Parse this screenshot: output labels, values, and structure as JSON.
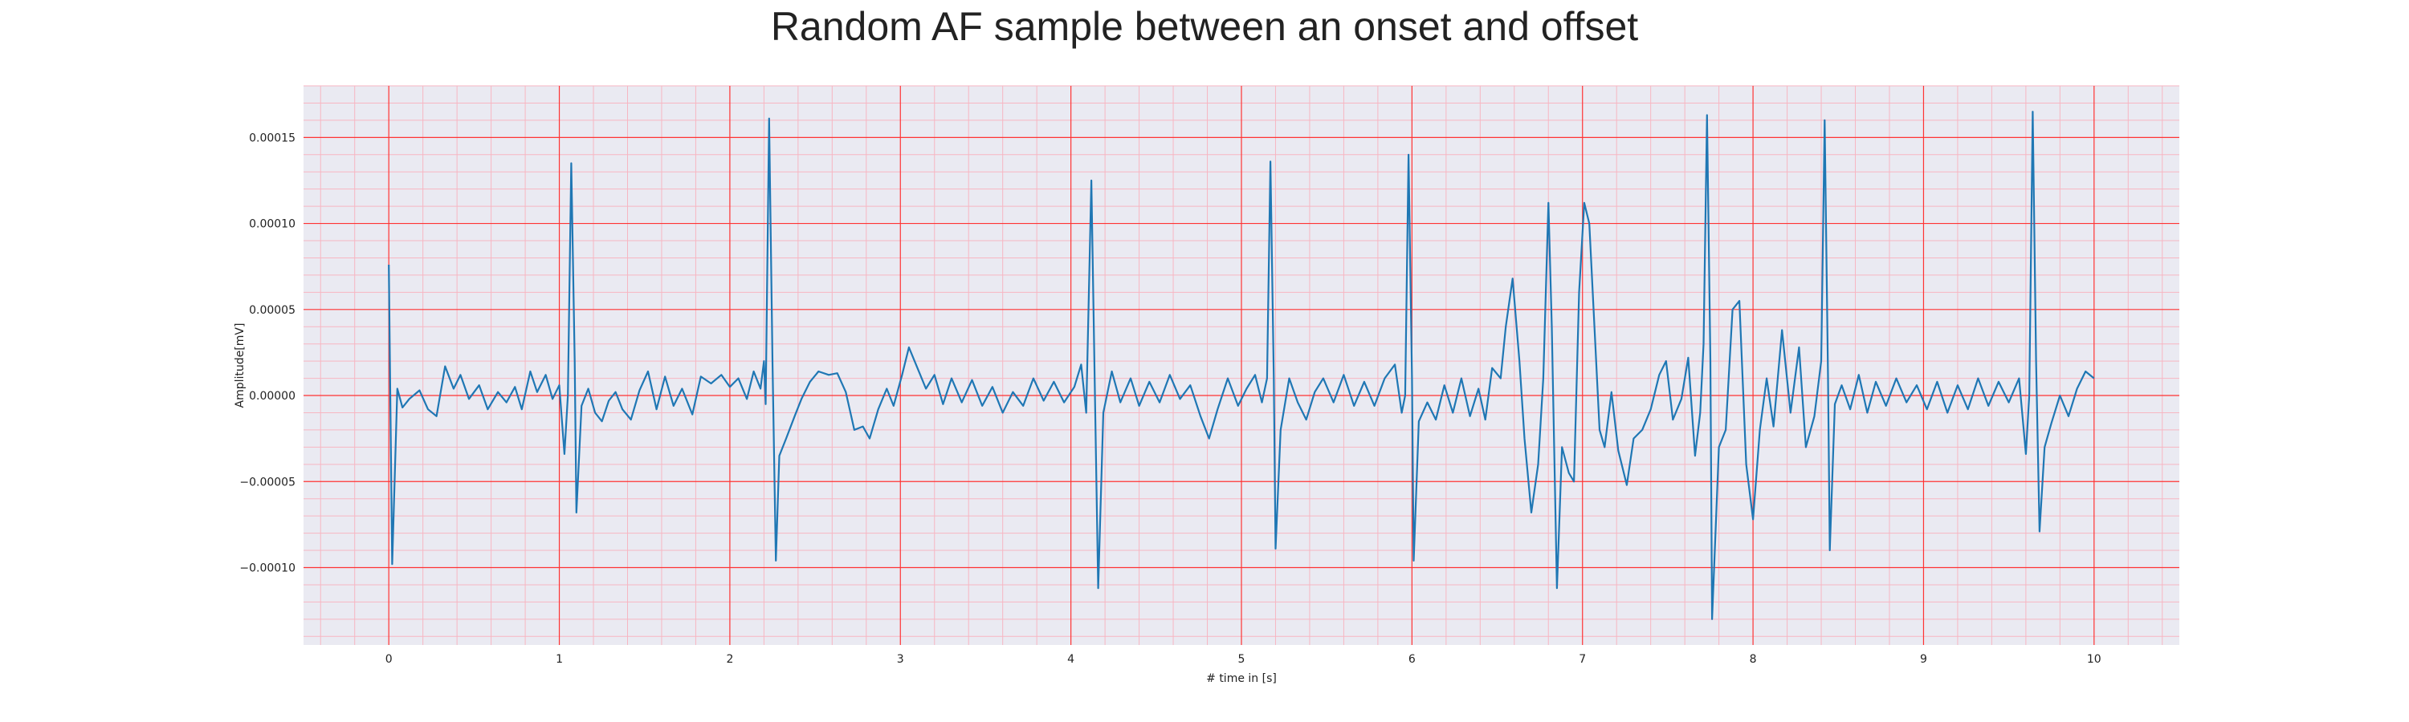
{
  "chart_data": {
    "type": "line",
    "title": "Random AF sample between an onset and offset",
    "xlabel": "# time in [s]",
    "ylabel": "Amplitude[mV]",
    "xlim": [
      -0.5,
      10.5
    ],
    "ylim": [
      -0.000145,
      0.00018
    ],
    "x_ticks": [
      0,
      1,
      2,
      3,
      4,
      5,
      6,
      7,
      8,
      9,
      10
    ],
    "x_tick_labels": [
      "0",
      "1",
      "2",
      "3",
      "4",
      "5",
      "6",
      "7",
      "8",
      "9",
      "10"
    ],
    "y_ticks": [
      -0.0001,
      -5e-05,
      0,
      5e-05,
      0.0001,
      0.00015
    ],
    "y_tick_labels": [
      "−0.00010",
      "−0.00005",
      "0.00000",
      "0.00005",
      "0.00010",
      "0.00015"
    ],
    "grid": "major and minor",
    "colors": {
      "line": "#1f77b4",
      "plot_background": "#eaeaf2",
      "major_grid": "#ff3333",
      "minor_grid": "#f7b6c2"
    },
    "series": [
      {
        "points": [
          [
            0.0,
            7.6e-05
          ],
          [
            0.02,
            -9.8e-05
          ],
          [
            0.05,
            4e-06
          ],
          [
            0.08,
            -7e-06
          ],
          [
            0.12,
            -2e-06
          ],
          [
            0.18,
            3e-06
          ],
          [
            0.23,
            -8e-06
          ],
          [
            0.28,
            -1.2e-05
          ],
          [
            0.33,
            1.7e-05
          ],
          [
            0.38,
            4e-06
          ],
          [
            0.42,
            1.2e-05
          ],
          [
            0.47,
            -2e-06
          ],
          [
            0.53,
            6e-06
          ],
          [
            0.58,
            -8e-06
          ],
          [
            0.64,
            2e-06
          ],
          [
            0.69,
            -4e-06
          ],
          [
            0.74,
            5e-06
          ],
          [
            0.78,
            -8e-06
          ],
          [
            0.83,
            1.4e-05
          ],
          [
            0.87,
            2e-06
          ],
          [
            0.92,
            1.2e-05
          ],
          [
            0.96,
            -2e-06
          ],
          [
            1.0,
            6e-06
          ],
          [
            1.03,
            -3.4e-05
          ],
          [
            1.05,
            0.0
          ],
          [
            1.07,
            0.000135
          ],
          [
            1.09,
            2e-05
          ],
          [
            1.1,
            -6.8e-05
          ],
          [
            1.13,
            -6e-06
          ],
          [
            1.17,
            4e-06
          ],
          [
            1.21,
            -1e-05
          ],
          [
            1.25,
            -1.5e-05
          ],
          [
            1.29,
            -3e-06
          ],
          [
            1.33,
            2e-06
          ],
          [
            1.37,
            -8e-06
          ],
          [
            1.42,
            -1.4e-05
          ],
          [
            1.47,
            3e-06
          ],
          [
            1.52,
            1.4e-05
          ],
          [
            1.57,
            -8e-06
          ],
          [
            1.62,
            1.1e-05
          ],
          [
            1.67,
            -6e-06
          ],
          [
            1.72,
            4e-06
          ],
          [
            1.78,
            -1.1e-05
          ],
          [
            1.83,
            1.1e-05
          ],
          [
            1.89,
            7e-06
          ],
          [
            1.95,
            1.2e-05
          ],
          [
            2.0,
            5e-06
          ],
          [
            2.05,
            1e-05
          ],
          [
            2.1,
            -2e-06
          ],
          [
            2.14,
            1.4e-05
          ],
          [
            2.18,
            4e-06
          ],
          [
            2.2,
            2e-05
          ],
          [
            2.21,
            -5e-06
          ],
          [
            2.23,
            0.000161
          ],
          [
            2.25,
            2e-05
          ],
          [
            2.27,
            -9.6e-05
          ],
          [
            2.29,
            -3.5e-05
          ],
          [
            2.33,
            -2.5e-05
          ],
          [
            2.38,
            -1.2e-05
          ],
          [
            2.42,
            -2e-06
          ],
          [
            2.47,
            8e-06
          ],
          [
            2.52,
            1.4e-05
          ],
          [
            2.58,
            1.2e-05
          ],
          [
            2.63,
            1.3e-05
          ],
          [
            2.68,
            2e-06
          ],
          [
            2.73,
            -2e-05
          ],
          [
            2.78,
            -1.8e-05
          ],
          [
            2.82,
            -2.5e-05
          ],
          [
            2.87,
            -8e-06
          ],
          [
            2.92,
            4e-06
          ],
          [
            2.96,
            -6e-06
          ],
          [
            3.01,
            1.2e-05
          ],
          [
            3.05,
            2.8e-05
          ],
          [
            3.1,
            1.6e-05
          ],
          [
            3.15,
            4e-06
          ],
          [
            3.2,
            1.2e-05
          ],
          [
            3.25,
            -5e-06
          ],
          [
            3.3,
            1e-05
          ],
          [
            3.36,
            -4e-06
          ],
          [
            3.42,
            9e-06
          ],
          [
            3.48,
            -6e-06
          ],
          [
            3.54,
            5e-06
          ],
          [
            3.6,
            -1e-05
          ],
          [
            3.66,
            2e-06
          ],
          [
            3.72,
            -6e-06
          ],
          [
            3.78,
            1e-05
          ],
          [
            3.84,
            -3e-06
          ],
          [
            3.9,
            8e-06
          ],
          [
            3.96,
            -4e-06
          ],
          [
            4.02,
            5e-06
          ],
          [
            4.06,
            1.8e-05
          ],
          [
            4.09,
            -1e-05
          ],
          [
            4.12,
            0.000125
          ],
          [
            4.14,
            5e-06
          ],
          [
            4.16,
            -0.000112
          ],
          [
            4.19,
            -1e-05
          ],
          [
            4.24,
            1.4e-05
          ],
          [
            4.29,
            -4e-06
          ],
          [
            4.35,
            1e-05
          ],
          [
            4.4,
            -6e-06
          ],
          [
            4.46,
            8e-06
          ],
          [
            4.52,
            -4e-06
          ],
          [
            4.58,
            1.2e-05
          ],
          [
            4.64,
            -2e-06
          ],
          [
            4.7,
            6e-06
          ],
          [
            4.76,
            -1.2e-05
          ],
          [
            4.81,
            -2.5e-05
          ],
          [
            4.86,
            -8e-06
          ],
          [
            4.92,
            1e-05
          ],
          [
            4.98,
            -6e-06
          ],
          [
            5.03,
            4e-06
          ],
          [
            5.08,
            1.2e-05
          ],
          [
            5.12,
            -4e-06
          ],
          [
            5.15,
            1e-05
          ],
          [
            5.17,
            0.000136
          ],
          [
            5.19,
            1e-05
          ],
          [
            5.2,
            -8.9e-05
          ],
          [
            5.23,
            -2e-05
          ],
          [
            5.28,
            1e-05
          ],
          [
            5.33,
            -4e-06
          ],
          [
            5.38,
            -1.4e-05
          ],
          [
            5.43,
            2e-06
          ],
          [
            5.48,
            1e-05
          ],
          [
            5.54,
            -4e-06
          ],
          [
            5.6,
            1.2e-05
          ],
          [
            5.66,
            -6e-06
          ],
          [
            5.72,
            8e-06
          ],
          [
            5.78,
            -6e-06
          ],
          [
            5.84,
            1e-05
          ],
          [
            5.9,
            1.8e-05
          ],
          [
            5.94,
            -1e-05
          ],
          [
            5.96,
            0.0
          ],
          [
            5.98,
            0.00014
          ],
          [
            6.0,
            1e-05
          ],
          [
            6.01,
            -9.6e-05
          ],
          [
            6.04,
            -1.5e-05
          ],
          [
            6.09,
            -4e-06
          ],
          [
            6.14,
            -1.4e-05
          ],
          [
            6.19,
            6e-06
          ],
          [
            6.24,
            -1e-05
          ],
          [
            6.29,
            1e-05
          ],
          [
            6.34,
            -1.2e-05
          ],
          [
            6.39,
            4e-06
          ],
          [
            6.43,
            -1.4e-05
          ],
          [
            6.47,
            1.6e-05
          ],
          [
            6.52,
            1e-05
          ],
          [
            6.55,
            4e-05
          ],
          [
            6.59,
            6.8e-05
          ],
          [
            6.63,
            2e-05
          ],
          [
            6.66,
            -2.5e-05
          ],
          [
            6.7,
            -6.8e-05
          ],
          [
            6.74,
            -4e-05
          ],
          [
            6.77,
            1e-05
          ],
          [
            6.8,
            0.000112
          ],
          [
            6.82,
            4e-05
          ],
          [
            6.85,
            -0.000112
          ],
          [
            6.88,
            -3e-05
          ],
          [
            6.92,
            -4.5e-05
          ],
          [
            6.95,
            -5e-05
          ],
          [
            6.98,
            6e-05
          ],
          [
            7.01,
            0.000112
          ],
          [
            7.04,
            0.0001
          ],
          [
            7.07,
            4e-05
          ],
          [
            7.1,
            -2e-05
          ],
          [
            7.13,
            -3e-05
          ],
          [
            7.17,
            2e-06
          ],
          [
            7.21,
            -3.2e-05
          ],
          [
            7.26,
            -5.2e-05
          ],
          [
            7.3,
            -2.5e-05
          ],
          [
            7.35,
            -2e-05
          ],
          [
            7.4,
            -8e-06
          ],
          [
            7.45,
            1.2e-05
          ],
          [
            7.49,
            2e-05
          ],
          [
            7.53,
            -1.4e-05
          ],
          [
            7.58,
            -2e-06
          ],
          [
            7.62,
            2.2e-05
          ],
          [
            7.66,
            -3.5e-05
          ],
          [
            7.69,
            -1e-05
          ],
          [
            7.71,
            3e-05
          ],
          [
            7.73,
            0.000163
          ],
          [
            7.75,
            2e-05
          ],
          [
            7.76,
            -0.00013
          ],
          [
            7.8,
            -3e-05
          ],
          [
            7.84,
            -2e-05
          ],
          [
            7.88,
            5e-05
          ],
          [
            7.92,
            5.5e-05
          ],
          [
            7.96,
            -4e-05
          ],
          [
            8.0,
            -7.2e-05
          ],
          [
            8.04,
            -2e-05
          ],
          [
            8.08,
            1e-05
          ],
          [
            8.12,
            -1.8e-05
          ],
          [
            8.17,
            3.8e-05
          ],
          [
            8.22,
            -1e-05
          ],
          [
            8.27,
            2.8e-05
          ],
          [
            8.31,
            -3e-05
          ],
          [
            8.36,
            -1.2e-05
          ],
          [
            8.4,
            2e-05
          ],
          [
            8.42,
            0.00016
          ],
          [
            8.44,
            1e-05
          ],
          [
            8.45,
            -9e-05
          ],
          [
            8.48,
            -5e-06
          ],
          [
            8.52,
            6e-06
          ],
          [
            8.57,
            -8e-06
          ],
          [
            8.62,
            1.2e-05
          ],
          [
            8.67,
            -1e-05
          ],
          [
            8.72,
            8e-06
          ],
          [
            8.78,
            -6e-06
          ],
          [
            8.84,
            1e-05
          ],
          [
            8.9,
            -4e-06
          ],
          [
            8.96,
            6e-06
          ],
          [
            9.02,
            -8e-06
          ],
          [
            9.08,
            8e-06
          ],
          [
            9.14,
            -1e-05
          ],
          [
            9.2,
            6e-06
          ],
          [
            9.26,
            -8e-06
          ],
          [
            9.32,
            1e-05
          ],
          [
            9.38,
            -6e-06
          ],
          [
            9.44,
            8e-06
          ],
          [
            9.5,
            -4e-06
          ],
          [
            9.56,
            1e-05
          ],
          [
            9.6,
            -3.4e-05
          ],
          [
            9.62,
            0.0
          ],
          [
            9.64,
            0.000165
          ],
          [
            9.66,
            2e-05
          ],
          [
            9.68,
            -7.9e-05
          ],
          [
            9.71,
            -3e-05
          ],
          [
            9.75,
            -1.6e-05
          ],
          [
            9.8,
            0.0
          ],
          [
            9.85,
            -1.2e-05
          ],
          [
            9.9,
            4e-06
          ],
          [
            9.95,
            1.4e-05
          ],
          [
            10.0,
            1e-05
          ]
        ]
      }
    ]
  }
}
